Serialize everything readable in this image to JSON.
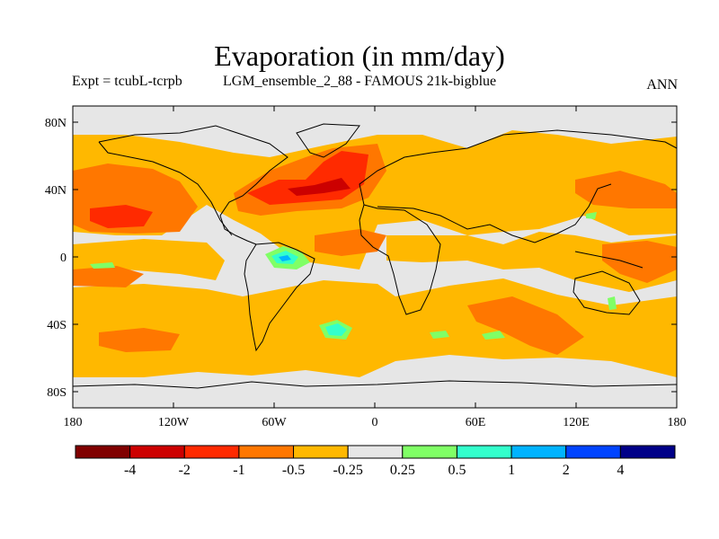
{
  "title": "Evaporation (in mm/day)",
  "subtitle_left": "Expt = tcubL-tcrpb",
  "subtitle_center": "LGM_ensemble_2_88 - FAMOUS 21k-bigblue",
  "subtitle_right": "ANN",
  "lat_ticks": [
    "80N",
    "40N",
    "0",
    "40S",
    "80S"
  ],
  "lon_ticks": [
    "180",
    "120W",
    "60W",
    "0",
    "60E",
    "120E",
    "180"
  ],
  "colorbar": {
    "colors": [
      "#800000",
      "#cc0000",
      "#ff2a00",
      "#ff7700",
      "#ffb800",
      "#e6e6e6",
      "#80ff66",
      "#33ffcc",
      "#00b3ff",
      "#0044ff",
      "#000088"
    ],
    "labels": [
      "-4",
      "-2",
      "-1",
      "-0.5",
      "-0.25",
      "0.25",
      "0.5",
      "1",
      "2",
      "4"
    ]
  }
}
